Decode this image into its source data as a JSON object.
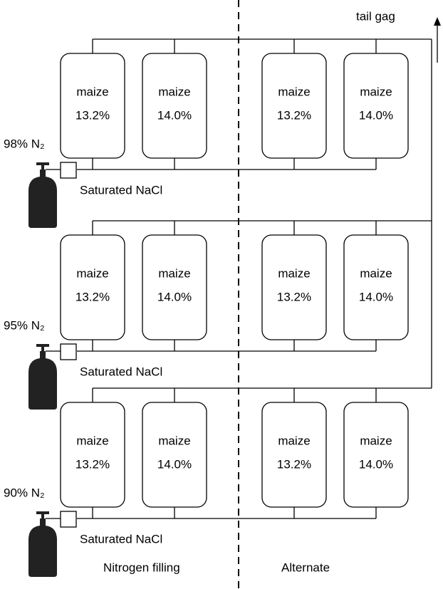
{
  "tail_gas_label": "tail gag",
  "sections": {
    "left": "Nitrogen filling",
    "right": "Alternate"
  },
  "rows": [
    {
      "gas": "98% N₂",
      "solution": "Saturated NaCl",
      "containers": [
        {
          "label": "maize",
          "moisture": "13.2%"
        },
        {
          "label": "maize",
          "moisture": "14.0%"
        },
        {
          "label": "maize",
          "moisture": "13.2%"
        },
        {
          "label": "maize",
          "moisture": "14.0%"
        }
      ]
    },
    {
      "gas": "95% N₂",
      "solution": "Saturated NaCl",
      "containers": [
        {
          "label": "maize",
          "moisture": "13.2%"
        },
        {
          "label": "maize",
          "moisture": "14.0%"
        },
        {
          "label": "maize",
          "moisture": "13.2%"
        },
        {
          "label": "maize",
          "moisture": "14.0%"
        }
      ]
    },
    {
      "gas": "90% N₂",
      "solution": "Saturated NaCl",
      "containers": [
        {
          "label": "maize",
          "moisture": "13.2%"
        },
        {
          "label": "maize",
          "moisture": "14.0%"
        },
        {
          "label": "maize",
          "moisture": "13.2%"
        },
        {
          "label": "maize",
          "moisture": "14.0%"
        }
      ]
    }
  ]
}
